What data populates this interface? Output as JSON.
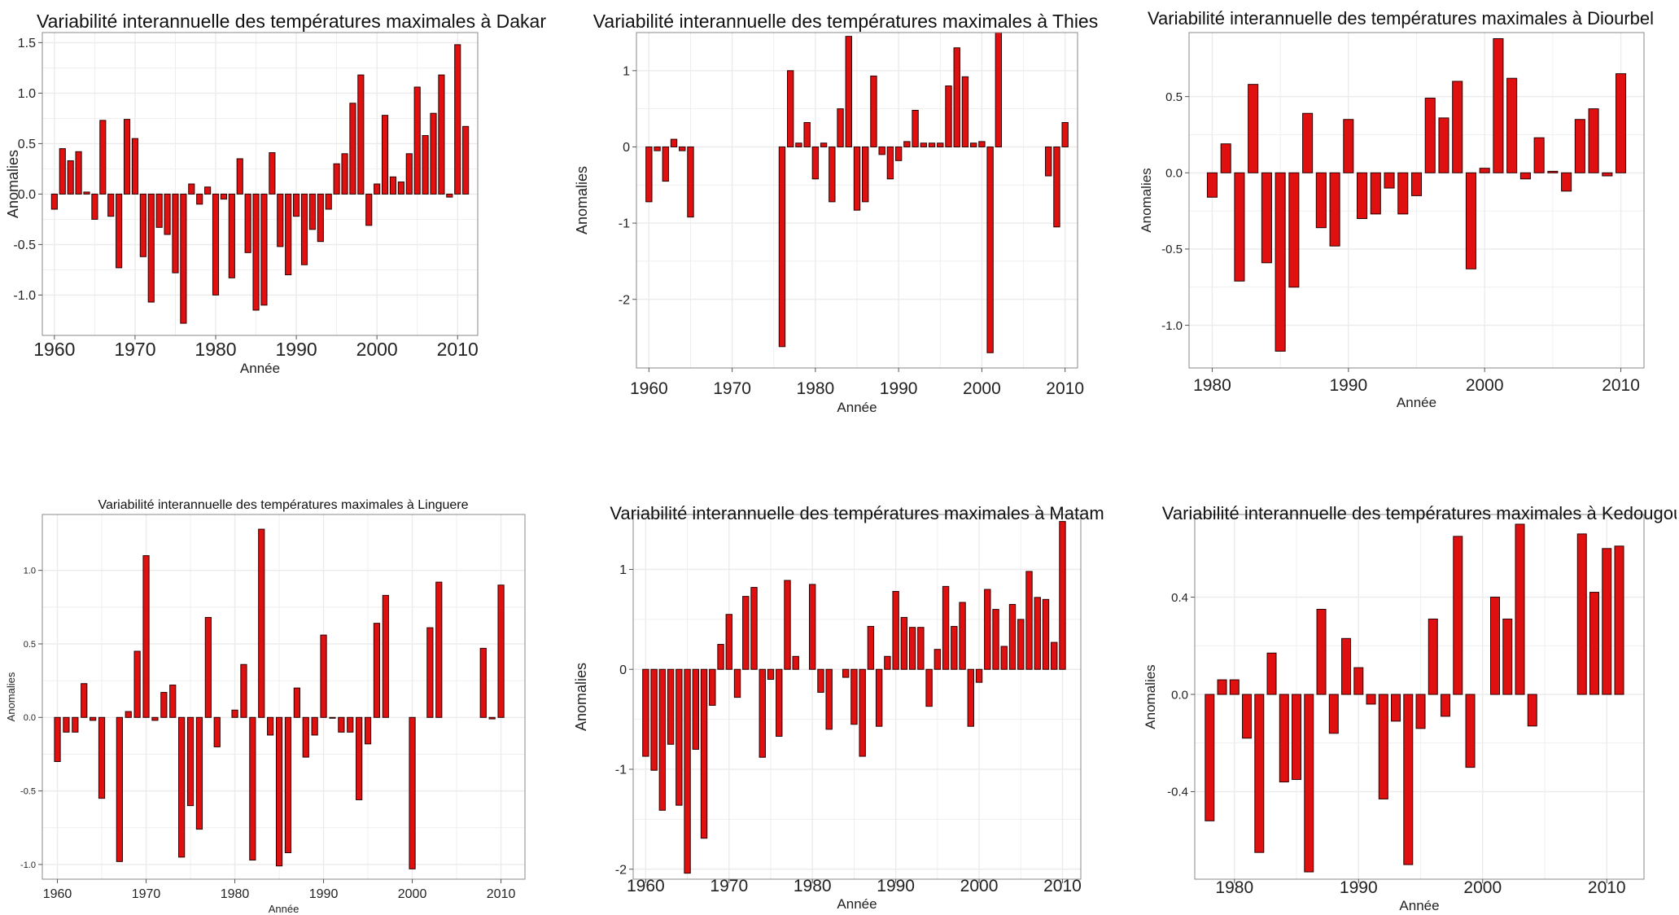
{
  "colors": {
    "bar_fill": "#e01010",
    "bar_stroke": "#2a0000",
    "grid": "#ebebeb",
    "panel_border": "#888888",
    "background": "#ffffff"
  },
  "chart_data": [
    {
      "type": "bar",
      "title": "Variabilité interannuelle des températures maximales à Dakar",
      "xlabel": "Année",
      "ylabel": "Anomalies",
      "xlim": [
        1958.5,
        2012.5
      ],
      "ylim": [
        -1.4,
        1.6
      ],
      "xticks": [
        1960,
        1970,
        1980,
        1990,
        2000,
        2010
      ],
      "yticks": [
        -1.0,
        -0.5,
        0.0,
        0.5,
        1.0,
        1.5
      ],
      "ytick_labels": [
        "-1.0",
        "-0.5",
        "0.0",
        "0.5",
        "1.0",
        "1.5"
      ],
      "grid": true,
      "legend": "none",
      "x": [
        1960,
        1961,
        1962,
        1963,
        1964,
        1965,
        1966,
        1967,
        1968,
        1969,
        1970,
        1971,
        1972,
        1973,
        1974,
        1975,
        1976,
        1977,
        1978,
        1979,
        1980,
        1981,
        1982,
        1983,
        1984,
        1985,
        1986,
        1987,
        1988,
        1989,
        1990,
        1991,
        1992,
        1993,
        1994,
        1995,
        1996,
        1997,
        1998,
        1999,
        2000,
        2001,
        2002,
        2003,
        2004,
        2005,
        2006,
        2007,
        2008,
        2009,
        2010,
        2011
      ],
      "values": [
        -0.15,
        0.45,
        0.33,
        0.42,
        0.02,
        -0.25,
        0.73,
        -0.22,
        -0.73,
        0.74,
        0.55,
        -0.62,
        -1.07,
        -0.33,
        -0.4,
        -0.78,
        -1.28,
        0.1,
        -0.1,
        0.07,
        -1.0,
        -0.05,
        -0.83,
        0.35,
        -0.58,
        -1.15,
        -1.1,
        0.41,
        -0.52,
        -0.8,
        -0.22,
        -0.7,
        -0.35,
        -0.47,
        -0.15,
        0.3,
        0.4,
        0.9,
        1.18,
        -0.31,
        0.1,
        0.78,
        0.17,
        0.12,
        0.4,
        1.06,
        0.58,
        0.8,
        1.18,
        -0.03,
        1.48,
        0.67
      ]
    },
    {
      "type": "bar",
      "title": "Variabilité interannuelle des températures maximales à Thies",
      "xlabel": "Année",
      "ylabel": "Anomalies",
      "xlim": [
        1958.5,
        2011.5
      ],
      "ylim": [
        -2.9,
        1.5
      ],
      "xticks": [
        1960,
        1970,
        1980,
        1990,
        2000,
        2010
      ],
      "yticks": [
        -2,
        -1,
        0,
        1
      ],
      "ytick_labels": [
        "-2",
        "-1",
        "0",
        "1"
      ],
      "grid": true,
      "legend": "none",
      "x": [
        1960,
        1961,
        1962,
        1963,
        1964,
        1965,
        1976,
        1977,
        1978,
        1979,
        1980,
        1981,
        1982,
        1983,
        1984,
        1985,
        1986,
        1987,
        1988,
        1989,
        1990,
        1991,
        1992,
        1993,
        1994,
        1995,
        1996,
        1997,
        1998,
        1999,
        2000,
        2001,
        2002,
        2008,
        2009,
        2010
      ],
      "values": [
        -0.72,
        -0.05,
        -0.45,
        0.1,
        -0.05,
        -0.92,
        -2.62,
        1.0,
        0.05,
        0.32,
        -0.42,
        0.05,
        -0.72,
        0.5,
        1.45,
        -0.83,
        -0.72,
        0.93,
        -0.1,
        -0.42,
        -0.18,
        0.07,
        0.48,
        0.05,
        0.05,
        0.05,
        0.8,
        1.3,
        0.92,
        0.05,
        0.07,
        -2.7,
        1.5,
        -0.38,
        -1.05,
        0.32
      ]
    },
    {
      "type": "bar",
      "title": "Variabilité interannuelle des températures maximales à Diourbel",
      "xlabel": "Année",
      "ylabel": "Anomalies",
      "xlim": [
        1978.3,
        2011.7
      ],
      "ylim": [
        -1.28,
        0.92
      ],
      "xticks": [
        1980,
        1990,
        2000,
        2010
      ],
      "yticks": [
        -1.0,
        -0.5,
        0.0,
        0.5
      ],
      "ytick_labels": [
        "-1.0",
        "-0.5",
        "0.0",
        "0.5"
      ],
      "grid": true,
      "legend": "none",
      "x": [
        1980,
        1981,
        1982,
        1983,
        1984,
        1985,
        1986,
        1987,
        1988,
        1989,
        1990,
        1991,
        1992,
        1993,
        1994,
        1995,
        1996,
        1997,
        1998,
        1999,
        2000,
        2001,
        2002,
        2003,
        2004,
        2005,
        2006,
        2007,
        2008,
        2009,
        2010
      ],
      "values": [
        -0.16,
        0.19,
        -0.71,
        0.58,
        -0.59,
        -1.17,
        -0.75,
        0.39,
        -0.36,
        -0.48,
        0.35,
        -0.3,
        -0.27,
        -0.1,
        -0.27,
        -0.15,
        0.49,
        0.36,
        0.6,
        -0.63,
        0.03,
        0.88,
        0.62,
        -0.04,
        0.23,
        0.01,
        -0.12,
        0.35,
        0.42,
        -0.02,
        0.65
      ]
    },
    {
      "type": "bar",
      "title": "Variabilité interannuelle des températures maximales à Linguere",
      "xlabel": "Année",
      "ylabel": "Anomalies",
      "xlim": [
        1958.3,
        2012.7
      ],
      "ylim": [
        -1.1,
        1.38
      ],
      "xticks": [
        1960,
        1970,
        1980,
        1990,
        2000,
        2010
      ],
      "yticks": [
        -1.0,
        -0.5,
        0.0,
        0.5,
        1.0
      ],
      "ytick_labels": [
        "-1.0",
        "-0.5",
        "0.0",
        "0.5",
        "1.0"
      ],
      "grid": true,
      "legend": "none",
      "x": [
        1960,
        1961,
        1962,
        1963,
        1964,
        1965,
        1967,
        1968,
        1969,
        1970,
        1971,
        1972,
        1973,
        1974,
        1975,
        1976,
        1977,
        1978,
        1980,
        1981,
        1982,
        1983,
        1984,
        1985,
        1986,
        1987,
        1988,
        1989,
        1990,
        1991,
        1992,
        1993,
        1994,
        1995,
        1996,
        1997,
        2000,
        2002,
        2003,
        2008,
        2009,
        2010
      ],
      "values": [
        -0.3,
        -0.1,
        -0.1,
        0.23,
        -0.02,
        -0.55,
        -0.98,
        0.04,
        0.45,
        1.1,
        -0.02,
        0.17,
        0.22,
        -0.95,
        -0.6,
        -0.76,
        0.68,
        -0.2,
        0.05,
        0.36,
        -0.97,
        1.28,
        -0.12,
        -1.01,
        -0.92,
        0.2,
        -0.27,
        -0.12,
        0.56,
        0.0,
        -0.1,
        -0.1,
        -0.56,
        -0.18,
        0.64,
        0.83,
        -1.03,
        0.61,
        0.92,
        0.47,
        -0.01,
        0.9
      ]
    },
    {
      "type": "bar",
      "title": "Variabilité interannuelle des températures maximales à Matam",
      "xlabel": "Année",
      "ylabel": "Anomalies",
      "xlim": [
        1958.5,
        2012.2
      ],
      "ylim": [
        -2.1,
        1.55
      ],
      "xticks": [
        1960,
        1970,
        1980,
        1990,
        2000,
        2010
      ],
      "yticks": [
        -2,
        -1,
        0,
        1
      ],
      "ytick_labels": [
        "-2",
        "-1",
        "0",
        "1"
      ],
      "grid": true,
      "legend": "none",
      "x": [
        1960,
        1961,
        1962,
        1963,
        1964,
        1965,
        1966,
        1967,
        1968,
        1969,
        1970,
        1971,
        1972,
        1973,
        1974,
        1975,
        1976,
        1977,
        1978,
        1980,
        1981,
        1982,
        1984,
        1985,
        1986,
        1987,
        1988,
        1989,
        1990,
        1991,
        1992,
        1993,
        1994,
        1995,
        1996,
        1997,
        1998,
        1999,
        2000,
        2001,
        2002,
        2003,
        2004,
        2005,
        2006,
        2007,
        2008,
        2009,
        2010
      ],
      "values": [
        -0.87,
        -1.01,
        -1.41,
        -0.75,
        -1.36,
        -2.04,
        -0.8,
        -1.69,
        -0.36,
        0.25,
        0.55,
        -0.28,
        0.73,
        0.82,
        -0.88,
        -0.1,
        -0.67,
        0.89,
        0.13,
        0.85,
        -0.23,
        -0.6,
        -0.08,
        -0.55,
        -0.87,
        0.43,
        -0.57,
        0.13,
        0.78,
        0.52,
        0.42,
        0.42,
        -0.37,
        0.2,
        0.83,
        0.43,
        0.67,
        -0.57,
        -0.13,
        0.8,
        0.6,
        0.23,
        0.65,
        0.5,
        0.98,
        0.72,
        0.7,
        0.27,
        1.48
      ]
    },
    {
      "type": "bar",
      "title": "Variabilité interannuelle des températures maximales à Kedougou",
      "xlabel": "Année",
      "ylabel": "Anomalies",
      "xlim": [
        1976.8,
        2013.0
      ],
      "ylim": [
        -0.76,
        0.74
      ],
      "xticks": [
        1980,
        1990,
        2000,
        2010
      ],
      "yticks": [
        -0.4,
        0.0,
        0.4
      ],
      "ytick_labels": [
        "-0.4",
        "0.0",
        "0.4"
      ],
      "grid": true,
      "legend": "none",
      "x": [
        1978,
        1979,
        1980,
        1981,
        1982,
        1983,
        1984,
        1985,
        1986,
        1987,
        1988,
        1989,
        1990,
        1991,
        1992,
        1993,
        1994,
        1995,
        1996,
        1997,
        1998,
        1999,
        2001,
        2002,
        2003,
        2004,
        2008,
        2009,
        2010,
        2011
      ],
      "values": [
        -0.52,
        0.06,
        0.06,
        -0.18,
        -0.65,
        0.17,
        -0.36,
        -0.35,
        -0.73,
        0.35,
        -0.16,
        0.23,
        0.11,
        -0.04,
        -0.43,
        -0.11,
        -0.7,
        -0.14,
        0.31,
        -0.09,
        0.65,
        -0.3,
        0.4,
        0.31,
        0.7,
        -0.13,
        0.66,
        0.42,
        0.6,
        0.61
      ]
    }
  ]
}
